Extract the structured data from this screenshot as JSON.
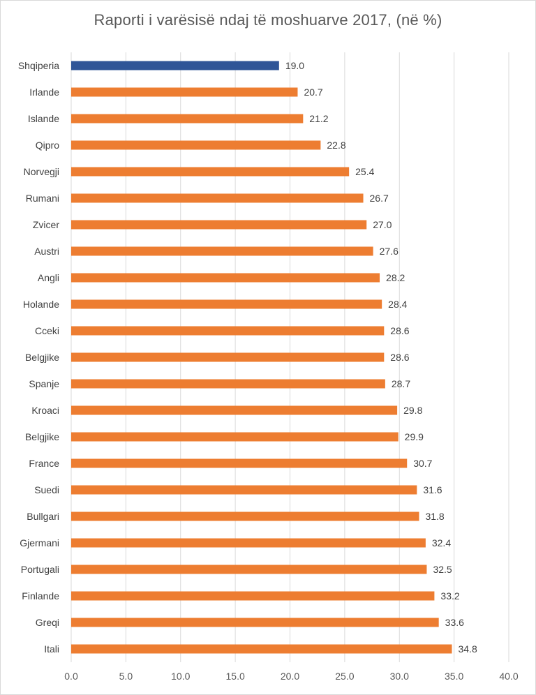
{
  "chart_data": {
    "type": "bar",
    "orientation": "horizontal",
    "title": "Raporti i varësisë ndaj të moshuarve 2017, (në %)",
    "xlabel": "",
    "ylabel": "",
    "xlim": [
      0,
      40
    ],
    "x_ticks": [
      "0.0",
      "5.0",
      "10.0",
      "15.0",
      "20.0",
      "25.0",
      "30.0",
      "35.0",
      "40.0"
    ],
    "grid": true,
    "categories": [
      "Shqiperia",
      "Irlande",
      "Islande",
      "Qipro",
      "Norvegji",
      "Rumani",
      "Zvicer",
      "Austri",
      "Angli",
      "Holande",
      "Cceki",
      "Belgjike",
      "Spanje",
      "Kroaci",
      "Belgjike",
      "France",
      "Suedi",
      "Bullgari",
      "Gjermani",
      "Portugali",
      "Finlande",
      "Greqi",
      "Itali"
    ],
    "values": [
      19.0,
      20.7,
      21.2,
      22.8,
      25.4,
      26.7,
      27.0,
      27.6,
      28.2,
      28.4,
      28.6,
      28.6,
      28.7,
      29.8,
      29.9,
      30.7,
      31.6,
      31.8,
      32.4,
      32.5,
      33.2,
      33.6,
      34.8
    ],
    "value_labels": [
      "19.0",
      "20.7",
      "21.2",
      "22.8",
      "25.4",
      "26.7",
      "27.0",
      "27.6",
      "28.2",
      "28.4",
      "28.6",
      "28.6",
      "28.7",
      "29.8",
      "29.9",
      "30.7",
      "31.6",
      "31.8",
      "32.4",
      "32.5",
      "33.2",
      "33.6",
      "34.8"
    ],
    "colors": {
      "highlight": "#2f5597",
      "default": "#ed7d31"
    },
    "highlight_index": 0
  }
}
